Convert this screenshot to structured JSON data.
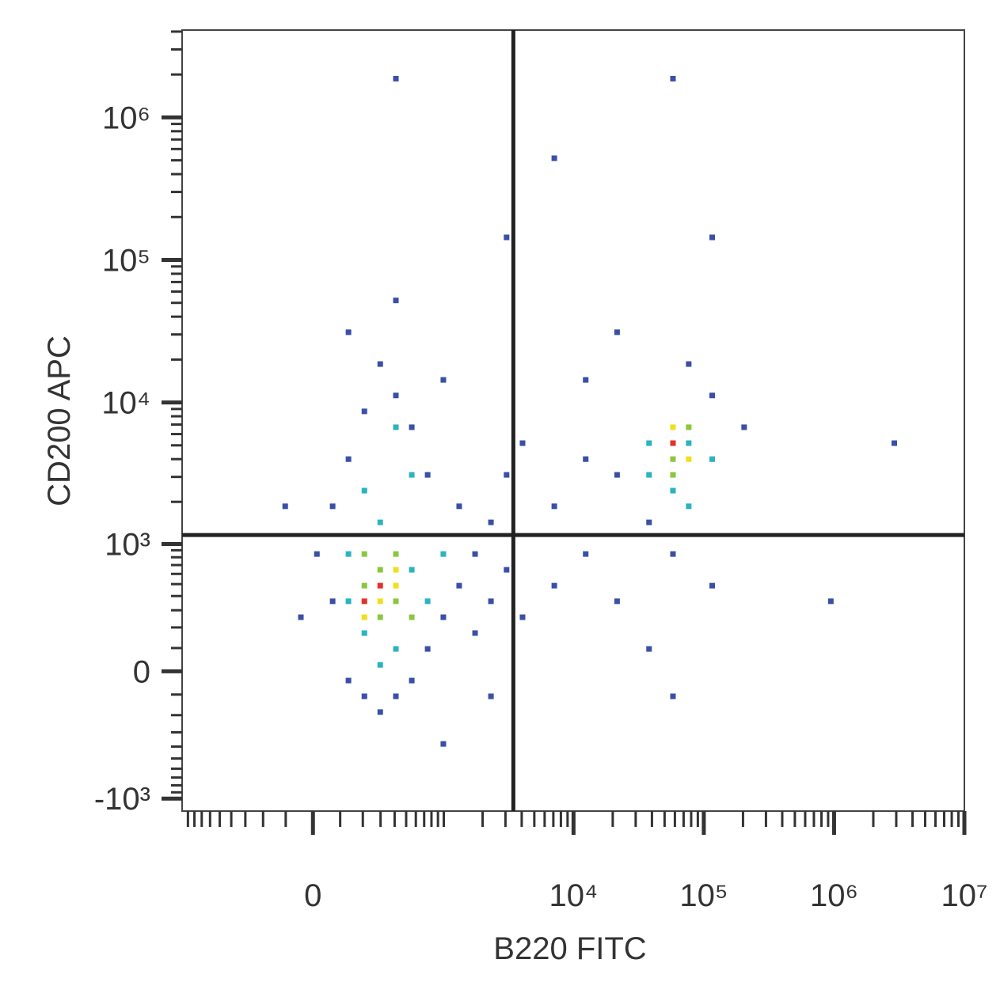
{
  "chart_data": {
    "type": "scatter",
    "xlabel": "B220 FITC",
    "ylabel": "CD200 APC",
    "xscale": "biexponential",
    "yscale": "biexponential",
    "xlim": [
      -1000,
      10000000
    ],
    "ylim": [
      -1230,
      4100000
    ],
    "xticks": [
      0,
      {
        "value": 10000,
        "label": "10⁴"
      },
      {
        "value": 100000,
        "label": "10⁵"
      },
      {
        "value": 1000000,
        "label": "10⁶"
      },
      {
        "value": 10000000,
        "label": "10⁷"
      }
    ],
    "yticks": [
      {
        "value": -1000,
        "label": "-10³"
      },
      0,
      {
        "value": 1000,
        "label": "10³"
      },
      {
        "value": 10000,
        "label": "10⁴"
      },
      {
        "value": 100000,
        "label": "10⁵"
      },
      {
        "value": 1000000,
        "label": "10⁶"
      }
    ],
    "xminor": [
      -900,
      -800,
      -700,
      -600,
      -500,
      -400,
      -300,
      -200,
      -100,
      100,
      200,
      300,
      400,
      500,
      600,
      700,
      800,
      900,
      1000,
      2000,
      3000,
      4000,
      5000,
      6000,
      7000,
      8000,
      9000,
      20000,
      30000,
      40000,
      50000,
      60000,
      70000,
      80000,
      90000,
      200000,
      300000,
      400000,
      500000,
      600000,
      700000,
      800000,
      900000,
      2000000,
      3000000,
      4000000,
      5000000,
      6000000,
      7000000,
      8000000,
      9000000
    ],
    "yminor": [
      -900,
      -800,
      -700,
      -600,
      -500,
      -400,
      -300,
      -200,
      -100,
      100,
      200,
      300,
      400,
      500,
      600,
      700,
      800,
      900,
      2000,
      3000,
      4000,
      5000,
      6000,
      7000,
      8000,
      9000,
      20000,
      30000,
      40000,
      50000,
      60000,
      70000,
      80000,
      90000,
      200000,
      300000,
      400000,
      500000,
      600000,
      700000,
      800000,
      900000,
      2000000,
      3000000,
      4000000
    ],
    "gates": {
      "x": 3450,
      "y": 1160
    },
    "series": [
      {
        "color": "#3a4fa6",
        "x": [
          14,
          71,
          71,
          134,
          134,
          208,
          208,
          298,
          298,
          410,
          410,
          556,
          556,
          746,
          746,
          992,
          992,
          1318,
          1318,
          1750,
          1750,
          2320,
          2320,
          3060,
          3060,
          4060,
          4060,
          7120,
          7120,
          12400,
          12400,
          21600,
          21600,
          38000,
          38000,
          58000,
          76600,
          116000,
          116000,
          204000,
          134,
          410,
          -43,
          -102,
          992,
          2320,
          58000,
          944000,
          2900000,
          7120,
          58000,
          410,
          3060,
          116000,
          21600,
          12400
        ],
        "values": [
          845,
          361,
          1860,
          -39,
          4000,
          -108,
          8660,
          -184,
          18600,
          -108,
          11200,
          -39,
          6700,
          96,
          3100,
          257,
          14400,
          486,
          1860,
          845,
          171,
          361,
          1430,
          645,
          3100,
          257,
          5180,
          486,
          1860,
          845,
          4000,
          361,
          3100,
          96,
          1430,
          845,
          18600,
          11200,
          486,
          6700,
          31100,
          52000,
          257,
          1860,
          -380,
          -108,
          -108,
          361,
          5180,
          517000,
          1870000,
          1870000,
          144000,
          144000,
          31100,
          14400
        ]
      },
      {
        "color": "#2bb3c0",
        "x": [
          134,
          208,
          208,
          298,
          410,
          556,
          746,
          556,
          410,
          992,
          134,
          298,
          38000,
          58000,
          76600,
          38000,
          76600,
          116000
        ],
        "values": [
          845,
          2400,
          171,
          1430,
          96,
          645,
          361,
          3100,
          6700,
          845,
          361,
          27,
          3100,
          2400,
          5180,
          5180,
          1860,
          4000
        ]
      },
      {
        "color": "#8cc63f",
        "x": [
          208,
          298,
          410,
          556,
          298,
          208,
          410,
          58000,
          76600,
          58000
        ],
        "values": [
          486,
          645,
          845,
          257,
          257,
          845,
          361,
          4000,
          6700,
          3100
        ]
      },
      {
        "color": "#f2df1c",
        "x": [
          410,
          298,
          410,
          76600,
          58000,
          208
        ],
        "values": [
          486,
          361,
          645,
          4000,
          6700,
          257
        ]
      },
      {
        "color": "#e53124",
        "x": [
          298,
          208,
          58000
        ],
        "values": [
          486,
          361,
          5180
        ]
      }
    ]
  }
}
